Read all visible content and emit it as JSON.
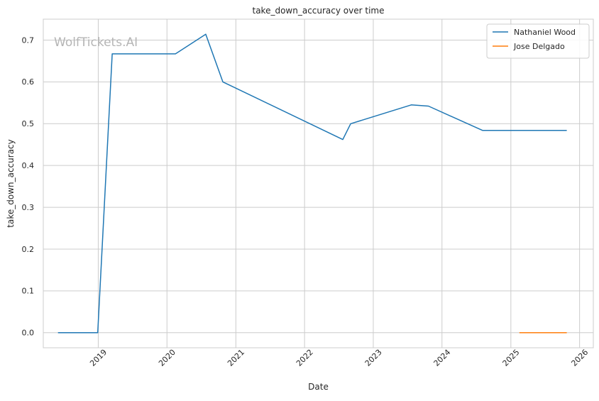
{
  "watermark": "WolfTickets.AI",
  "chart_data": {
    "type": "line",
    "title": "take_down_accuracy over time",
    "xlabel": "Date",
    "ylabel": "take_down_accuracy",
    "x_is_date": true,
    "xlim": [
      "2018-03-15",
      "2026-03-15"
    ],
    "ylim": [
      -0.036,
      0.75
    ],
    "x_ticks": [
      {
        "value": "2019-01-01",
        "label": "2019"
      },
      {
        "value": "2020-01-01",
        "label": "2020"
      },
      {
        "value": "2021-01-01",
        "label": "2021"
      },
      {
        "value": "2022-01-01",
        "label": "2022"
      },
      {
        "value": "2023-01-01",
        "label": "2023"
      },
      {
        "value": "2024-01-01",
        "label": "2024"
      },
      {
        "value": "2025-01-01",
        "label": "2025"
      },
      {
        "value": "2026-01-01",
        "label": "2026"
      }
    ],
    "y_ticks": [
      {
        "value": 0.0,
        "label": "0.0"
      },
      {
        "value": 0.1,
        "label": "0.1"
      },
      {
        "value": 0.2,
        "label": "0.2"
      },
      {
        "value": 0.3,
        "label": "0.3"
      },
      {
        "value": 0.4,
        "label": "0.4"
      },
      {
        "value": 0.5,
        "label": "0.5"
      },
      {
        "value": 0.6,
        "label": "0.6"
      },
      {
        "value": 0.7,
        "label": "0.7"
      }
    ],
    "grid": true,
    "legend_position": "top-right",
    "series": [
      {
        "name": "Nathaniel Wood",
        "color": "#1f77b4",
        "points": [
          {
            "x": "2018-06-01",
            "y": 0.0
          },
          {
            "x": "2018-12-29",
            "y": 0.0
          },
          {
            "x": "2019-03-16",
            "y": 0.667
          },
          {
            "x": "2020-02-15",
            "y": 0.667
          },
          {
            "x": "2020-07-25",
            "y": 0.714
          },
          {
            "x": "2020-10-24",
            "y": 0.6
          },
          {
            "x": "2022-07-23",
            "y": 0.462
          },
          {
            "x": "2022-09-03",
            "y": 0.5
          },
          {
            "x": "2023-07-22",
            "y": 0.545
          },
          {
            "x": "2023-10-21",
            "y": 0.542
          },
          {
            "x": "2024-08-03",
            "y": 0.484
          },
          {
            "x": "2025-10-25",
            "y": 0.484
          }
        ]
      },
      {
        "name": "Jose Delgado",
        "color": "#ff7f0e",
        "points": [
          {
            "x": "2025-02-15",
            "y": 0.0
          },
          {
            "x": "2025-10-25",
            "y": 0.0
          }
        ]
      }
    ]
  }
}
